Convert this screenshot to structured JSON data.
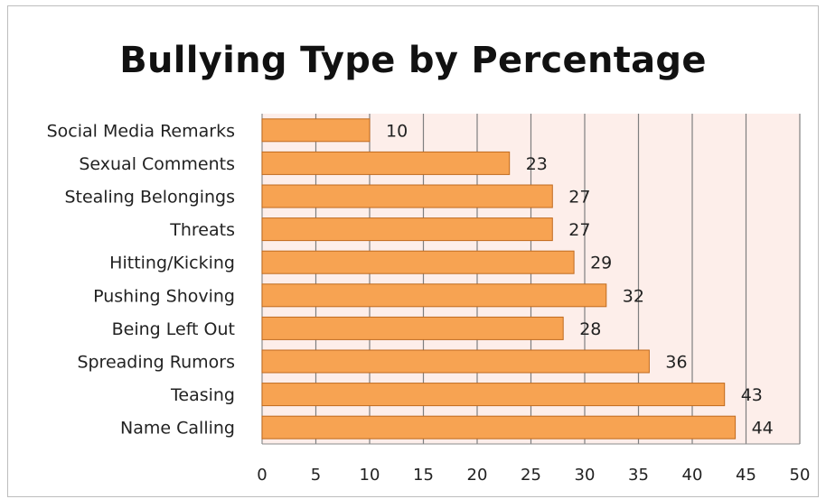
{
  "chart_data": {
    "type": "bar",
    "orientation": "horizontal",
    "title": "Bullying Type by Percentage",
    "categories": [
      "Social Media Remarks",
      "Sexual Comments",
      "Stealing Belongings",
      "Threats",
      "Hitting/Kicking",
      "Pushing Shoving",
      "Being Left Out",
      "Spreading Rumors",
      "Teasing",
      "Name Calling"
    ],
    "values": [
      10,
      23,
      27,
      27,
      29,
      32,
      28,
      36,
      43,
      44
    ],
    "xlim": [
      0,
      50
    ],
    "x_ticks": [
      0,
      5,
      10,
      15,
      20,
      25,
      30,
      35,
      40,
      45,
      50
    ],
    "grid": true,
    "data_labels": true,
    "legend": "none",
    "bar_color": "#f7a352",
    "bar_edge_color": "#c06a1e",
    "plot_background": "#fdeeea"
  }
}
